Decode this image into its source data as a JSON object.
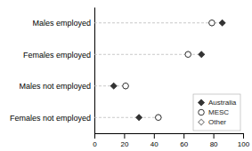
{
  "chart_data": {
    "type": "dot",
    "categories": [
      "Females not employed",
      "Males not employed",
      "Females employed",
      "Males employed"
    ],
    "series": [
      {
        "name": "Australia",
        "color": "#333333",
        "marker": "diamond",
        "values": [
          30,
          13,
          72,
          86
        ]
      },
      {
        "name": "MESC",
        "color": "#333333",
        "marker": "circle-open",
        "values": [
          43,
          21,
          63,
          79
        ]
      },
      {
        "name": "Other",
        "color": "#888888",
        "marker": "diamond-open",
        "values": [
          43,
          21,
          63,
          79
        ]
      }
    ],
    "xlim": [
      0,
      100
    ],
    "xticks": [
      0,
      20,
      40,
      60,
      80,
      100
    ],
    "grid": false,
    "legend": "lower right"
  }
}
